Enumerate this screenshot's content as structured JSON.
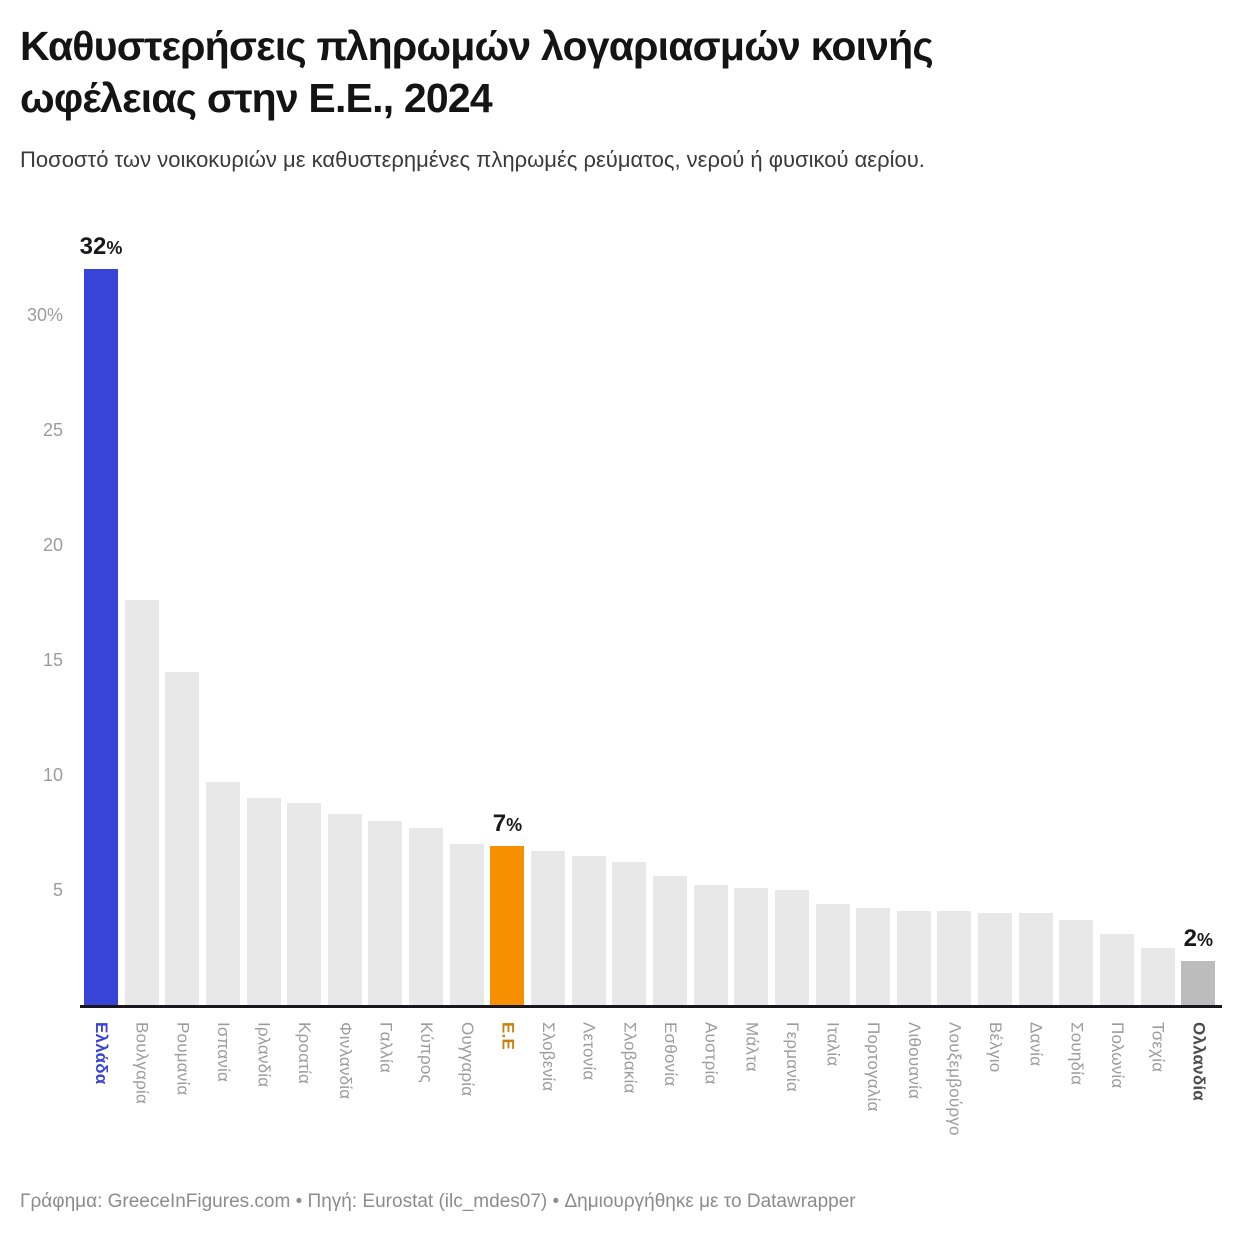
{
  "header": {
    "title": "Καθυστερήσεις πληρωμών λογαριασμών κοινής ωφέλειας στην Ε.Ε., 2024",
    "subtitle": "Ποσοστό των νοικοκυριών με καθυστερημένες πληρωμές ρεύματος, νερού ή φυσικού αερίου."
  },
  "footer": {
    "text": "Γράφημα: GreeceInFigures.com • Πηγή: Eurostat (ilc_mdes07)  • Δημιουργήθηκε με το Datawrapper"
  },
  "colors": {
    "bar_default": "#e8e8e8",
    "bar_greece": "#3843d8",
    "bar_eu": "#f79000",
    "bar_netherlands": "#bcbcbc",
    "label_default": "#9c9c9c",
    "label_greece": "#3843d8",
    "label_eu": "#c9800f",
    "label_netherlands": "#4c4c4c",
    "axis_line": "#17171c",
    "value_label": "#191919"
  },
  "chart_data": {
    "type": "bar",
    "title": "Καθυστερήσεις πληρωμών λογαριασμών κοινής ωφέλειας στην Ε.Ε., 2024",
    "subtitle": "Ποσοστό των νοικοκυριών με καθυστερημένες πληρωμές ρεύματος, νερού ή φυσικού αερίου.",
    "xlabel": "",
    "ylabel": "",
    "ylim": [
      0,
      32
    ],
    "grid": false,
    "legend": "none",
    "categories": [
      "Ελλάδα",
      "Βουλγαρία",
      "Ρουμανία",
      "Ισπανία",
      "Ιρλανδία",
      "Κροατία",
      "Φινλανδία",
      "Γαλλία",
      "Κύπρος",
      "Ουγγαρία",
      "Ε.Ε",
      "Σλοβενία",
      "Λετονία",
      "Σλοβακία",
      "Εσθονία",
      "Αυστρία",
      "Μάλτα",
      "Γερμανία",
      "Ιταλία",
      "Πορτογαλία",
      "Λιθουανία",
      "Λουξεμβούργο",
      "Βέλγιο",
      "Δανία",
      "Σουηδία",
      "Πολωνία",
      "Τσεχία",
      "Ολλανδία"
    ],
    "values": [
      32,
      17.6,
      14.5,
      9.7,
      9.0,
      8.8,
      8.3,
      8.0,
      7.7,
      7.0,
      6.9,
      6.7,
      6.5,
      6.2,
      5.6,
      5.2,
      5.1,
      5.0,
      4.4,
      4.2,
      4.1,
      4.1,
      4.0,
      4.0,
      3.7,
      3.1,
      2.5,
      1.9
    ],
    "yticks": [
      {
        "value": 5,
        "label": "5"
      },
      {
        "value": 10,
        "label": "10"
      },
      {
        "value": 15,
        "label": "15"
      },
      {
        "value": 20,
        "label": "20"
      },
      {
        "value": 25,
        "label": "25"
      },
      {
        "value": 30,
        "label": "30%"
      }
    ],
    "value_labels": [
      {
        "index": 0,
        "number": "32",
        "suffix": "%"
      },
      {
        "index": 10,
        "number": "7",
        "suffix": "%"
      },
      {
        "index": 27,
        "number": "2",
        "suffix": "%"
      }
    ],
    "emphasis": [
      {
        "index": 0,
        "name": "greece",
        "bar_color": "#3843d8",
        "label_color": "#3843d8"
      },
      {
        "index": 10,
        "name": "eu",
        "bar_color": "#f79000",
        "label_color": "#c9800f"
      },
      {
        "index": 27,
        "name": "netherlands",
        "bar_color": "#bcbcbc",
        "label_color": "#4c4c4c"
      }
    ]
  }
}
